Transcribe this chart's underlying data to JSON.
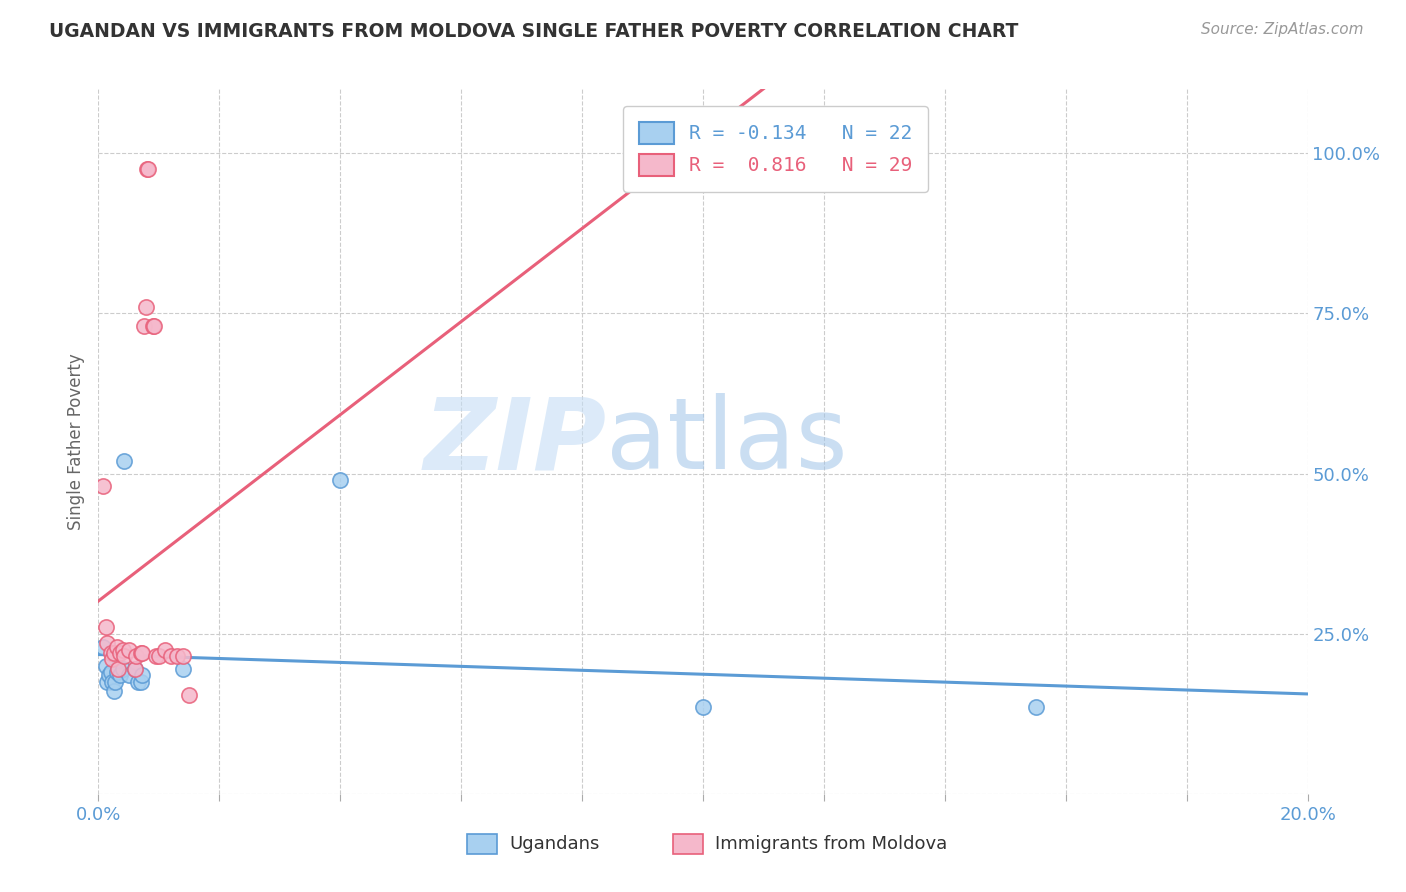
{
  "title": "UGANDAN VS IMMIGRANTS FROM MOLDOVA SINGLE FATHER POVERTY CORRELATION CHART",
  "source": "Source: ZipAtlas.com",
  "ylabel": "Single Father Poverty",
  "ugandan_color": "#a8d0f0",
  "moldova_color": "#f5b8cb",
  "ugandan_line_color": "#5b9bd5",
  "moldova_line_color": "#e8607a",
  "background_color": "#ffffff",
  "ugandan_scatter": [
    [
      0.0008,
      0.23
    ],
    [
      0.0012,
      0.2
    ],
    [
      0.0015,
      0.175
    ],
    [
      0.0018,
      0.185
    ],
    [
      0.002,
      0.19
    ],
    [
      0.0022,
      0.175
    ],
    [
      0.0025,
      0.16
    ],
    [
      0.0028,
      0.175
    ],
    [
      0.003,
      0.19
    ],
    [
      0.0032,
      0.22
    ],
    [
      0.0035,
      0.185
    ],
    [
      0.004,
      0.195
    ],
    [
      0.0042,
      0.52
    ],
    [
      0.005,
      0.185
    ],
    [
      0.006,
      0.195
    ],
    [
      0.0065,
      0.175
    ],
    [
      0.007,
      0.175
    ],
    [
      0.0072,
      0.185
    ],
    [
      0.014,
      0.195
    ],
    [
      0.04,
      0.49
    ],
    [
      0.1,
      0.135
    ],
    [
      0.155,
      0.135
    ]
  ],
  "moldova_scatter": [
    [
      0.0008,
      0.48
    ],
    [
      0.0012,
      0.26
    ],
    [
      0.0015,
      0.235
    ],
    [
      0.002,
      0.22
    ],
    [
      0.0022,
      0.21
    ],
    [
      0.0025,
      0.22
    ],
    [
      0.003,
      0.23
    ],
    [
      0.0032,
      0.195
    ],
    [
      0.0035,
      0.22
    ],
    [
      0.004,
      0.225
    ],
    [
      0.0042,
      0.215
    ],
    [
      0.005,
      0.225
    ],
    [
      0.006,
      0.195
    ],
    [
      0.0062,
      0.215
    ],
    [
      0.007,
      0.22
    ],
    [
      0.0072,
      0.22
    ],
    [
      0.0075,
      0.73
    ],
    [
      0.0078,
      0.76
    ],
    [
      0.008,
      0.975
    ],
    [
      0.0082,
      0.975
    ],
    [
      0.009,
      0.73
    ],
    [
      0.0092,
      0.73
    ],
    [
      0.0095,
      0.215
    ],
    [
      0.01,
      0.215
    ],
    [
      0.011,
      0.225
    ],
    [
      0.012,
      0.215
    ],
    [
      0.013,
      0.215
    ],
    [
      0.014,
      0.215
    ],
    [
      0.015,
      0.155
    ]
  ],
  "xlim": [
    0.0,
    0.2
  ],
  "ylim": [
    0.0,
    1.1
  ],
  "xticks": [
    0.0,
    0.02,
    0.04,
    0.06,
    0.08,
    0.1,
    0.12,
    0.14,
    0.16,
    0.18,
    0.2
  ],
  "yticks": [
    0.0,
    0.25,
    0.5,
    0.75,
    1.0
  ]
}
